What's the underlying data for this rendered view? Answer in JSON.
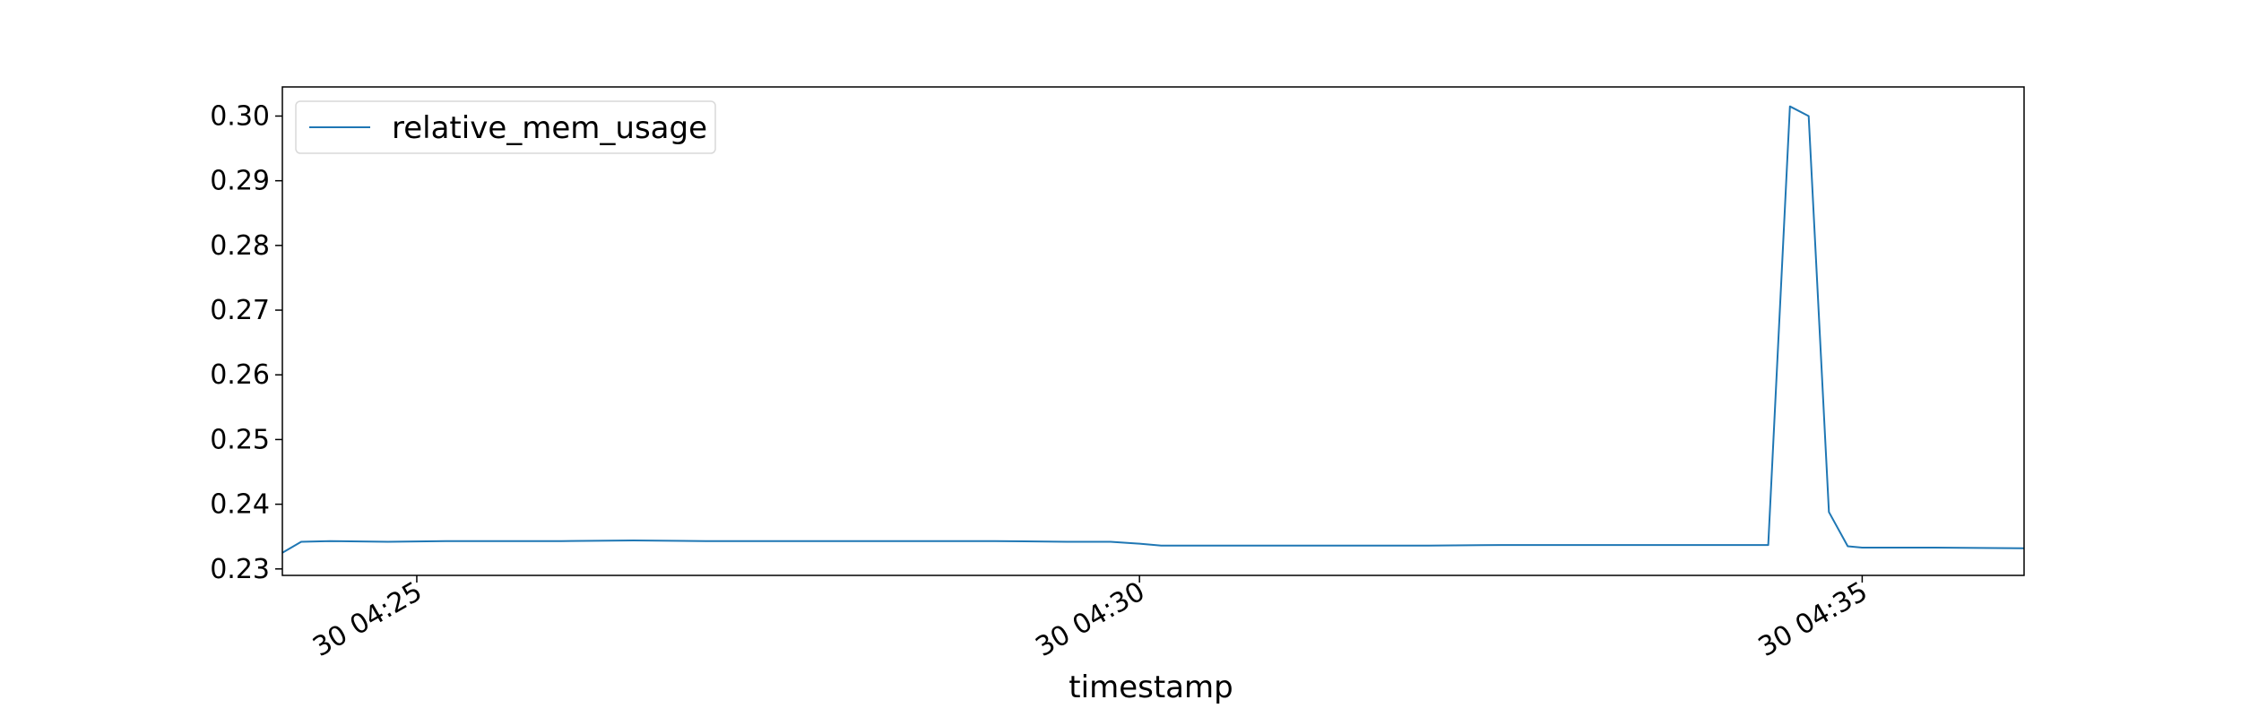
{
  "chart_data": {
    "type": "line",
    "title": "",
    "xlabel": "timestamp",
    "ylabel": "",
    "x_tick_labels": [
      "30 04:25",
      "30 04:30",
      "30 04:35"
    ],
    "x_tick_minutes": [
      25,
      30,
      35
    ],
    "y_tick_labels": [
      "0.23",
      "0.24",
      "0.25",
      "0.26",
      "0.27",
      "0.28",
      "0.29",
      "0.30"
    ],
    "ylim": [
      0.229,
      0.3045
    ],
    "xlim_minutes": [
      24.07,
      36.12
    ],
    "grid": false,
    "legend_position": "upper-left",
    "colors": {
      "series": "#1f77b4",
      "axis": "#000000"
    },
    "series": [
      {
        "name": "relative_mem_usage",
        "x_minutes": [
          24.07,
          24.2,
          24.4,
          24.8,
          25.2,
          25.6,
          26.0,
          26.5,
          27.0,
          27.5,
          28.0,
          28.5,
          29.0,
          29.5,
          29.8,
          30.0,
          30.15,
          30.5,
          31.0,
          31.5,
          32.0,
          32.5,
          33.0,
          33.5,
          34.0,
          34.35,
          34.5,
          34.63,
          34.77,
          34.9,
          35.0,
          35.5,
          36.12
        ],
        "values": [
          0.2325,
          0.2342,
          0.2343,
          0.2342,
          0.2343,
          0.2343,
          0.2343,
          0.2344,
          0.2343,
          0.2343,
          0.2343,
          0.2343,
          0.2343,
          0.2342,
          0.2342,
          0.2339,
          0.2336,
          0.2336,
          0.2336,
          0.2336,
          0.2336,
          0.2337,
          0.2337,
          0.2337,
          0.2337,
          0.2337,
          0.3015,
          0.3,
          0.2388,
          0.2335,
          0.2333,
          0.2333,
          0.2332
        ]
      }
    ]
  }
}
